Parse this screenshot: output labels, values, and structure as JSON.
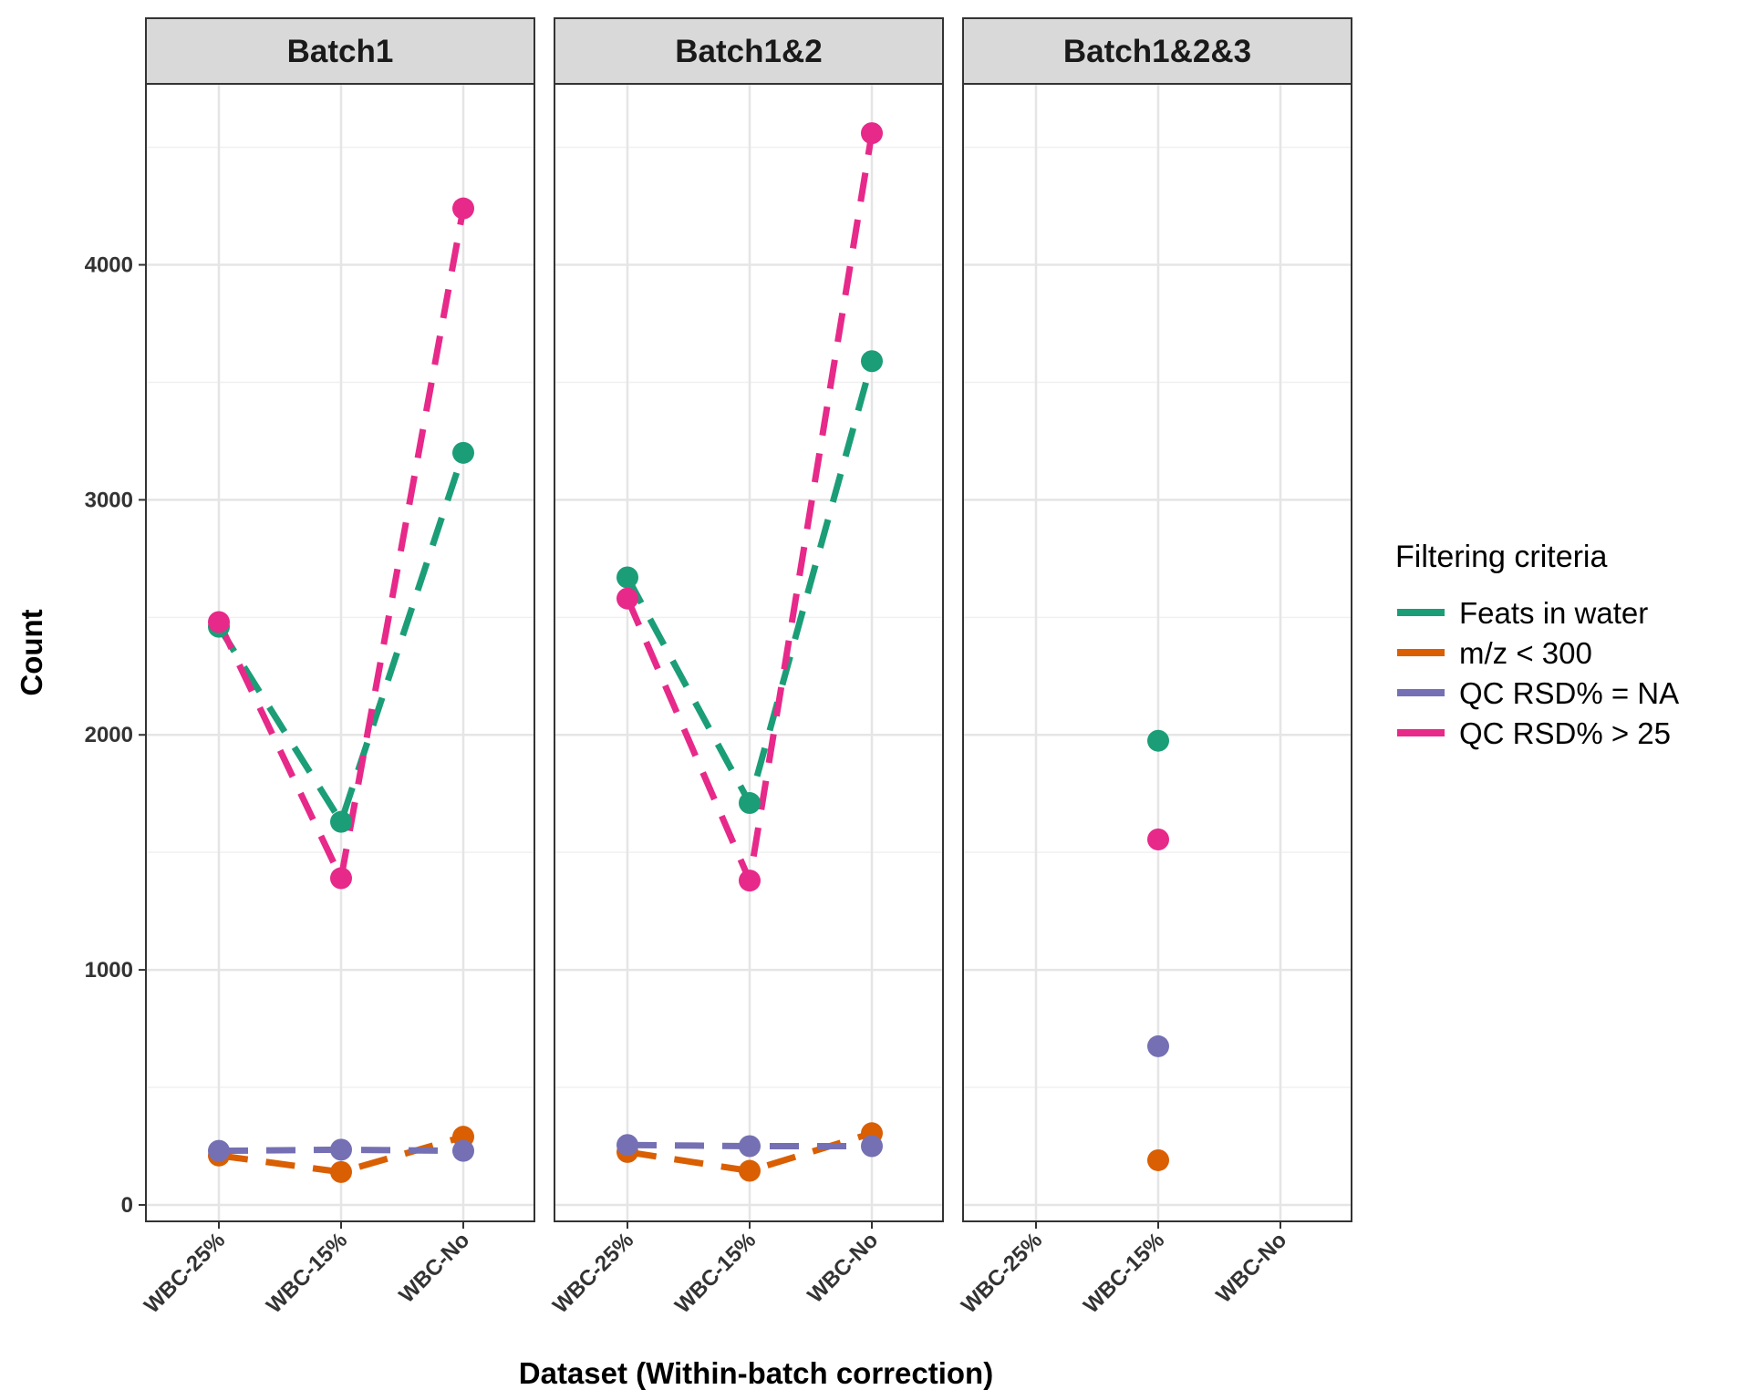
{
  "chart_data": {
    "type": "line",
    "categories": [
      "WBC-25%",
      "WBC-15%",
      "WBC-No"
    ],
    "xlabel": "Dataset (Within-batch correction)",
    "ylabel": "Count",
    "ylim": [
      -70,
      4770
    ],
    "yticks": [
      0,
      1000,
      2000,
      3000,
      4000
    ],
    "grid": true,
    "legend": {
      "title": "Filtering criteria",
      "placement": "right",
      "entries": [
        "Feats in water",
        "m/z < 300",
        "QC RSD% = NA",
        "QC RSD% > 25"
      ]
    },
    "colors": {
      "Feats in water": "#1b9e77",
      "m/z < 300": "#d95f02",
      "QC RSD% = NA": "#7570b3",
      "QC RSD% > 25": "#e7298a"
    },
    "panels": [
      {
        "label": "Batch1",
        "series": [
          {
            "name": "Feats in water",
            "values": [
              2460,
              1630,
              3200
            ]
          },
          {
            "name": "m/z < 300",
            "values": [
              210,
              140,
              290
            ]
          },
          {
            "name": "QC RSD% = NA",
            "values": [
              230,
              235,
              230
            ]
          },
          {
            "name": "QC RSD% > 25",
            "values": [
              2480,
              1390,
              4240
            ]
          }
        ]
      },
      {
        "label": "Batch1&2",
        "series": [
          {
            "name": "Feats in water",
            "values": [
              2670,
              1710,
              3590
            ]
          },
          {
            "name": "m/z < 300",
            "values": [
              225,
              145,
              305
            ]
          },
          {
            "name": "QC RSD% = NA",
            "values": [
              255,
              250,
              250
            ]
          },
          {
            "name": "QC RSD% > 25",
            "values": [
              2580,
              1380,
              4560
            ]
          }
        ]
      },
      {
        "label": "Batch1&2&3",
        "series": [
          {
            "name": "Feats in water",
            "values": [
              null,
              1975,
              null
            ]
          },
          {
            "name": "m/z < 300",
            "values": [
              null,
              190,
              null
            ]
          },
          {
            "name": "QC RSD% = NA",
            "values": [
              null,
              675,
              null
            ]
          },
          {
            "name": "QC RSD% > 25",
            "values": [
              null,
              1555,
              null
            ]
          }
        ]
      }
    ]
  }
}
